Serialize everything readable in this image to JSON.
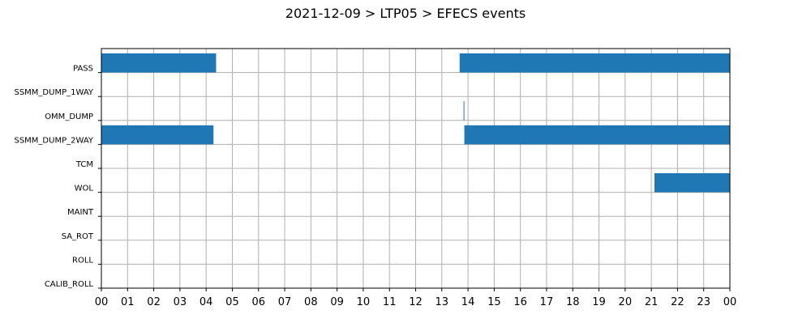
{
  "chart_data": {
    "type": "bar",
    "orientation": "horizontal-timeline",
    "title": "2021-12-09 > LTP05 > EFECS events",
    "xlabel": "",
    "ylabel": "",
    "x_unit": "hour of day",
    "xlim": [
      0,
      24
    ],
    "x_ticks": [
      0,
      1,
      2,
      3,
      4,
      5,
      6,
      7,
      8,
      9,
      10,
      11,
      12,
      13,
      14,
      15,
      16,
      17,
      18,
      19,
      20,
      21,
      22,
      23,
      24
    ],
    "x_tick_labels": [
      "00",
      "01",
      "02",
      "03",
      "04",
      "05",
      "06",
      "07",
      "08",
      "09",
      "10",
      "11",
      "12",
      "13",
      "14",
      "15",
      "16",
      "17",
      "18",
      "19",
      "20",
      "21",
      "22",
      "23",
      "00"
    ],
    "categories": [
      "PASS",
      "SSMM_DUMP_1WAY",
      "OMM_DUMP",
      "SSMM_DUMP_2WAY",
      "TCM",
      "WOL",
      "MAINT",
      "SA_ROT",
      "ROLL",
      "CALIB_ROLL"
    ],
    "grid": true,
    "bar_color": "#1f77b4",
    "events": [
      {
        "category": "PASS",
        "start": 0.0,
        "end": 4.38
      },
      {
        "category": "PASS",
        "start": 13.68,
        "end": 24.0
      },
      {
        "category": "OMM_DUMP",
        "start": 13.83,
        "end": 13.86
      },
      {
        "category": "SSMM_DUMP_2WAY",
        "start": 0.0,
        "end": 4.28
      },
      {
        "category": "SSMM_DUMP_2WAY",
        "start": 13.86,
        "end": 24.0
      },
      {
        "category": "WOL",
        "start": 21.12,
        "end": 24.0
      }
    ]
  }
}
